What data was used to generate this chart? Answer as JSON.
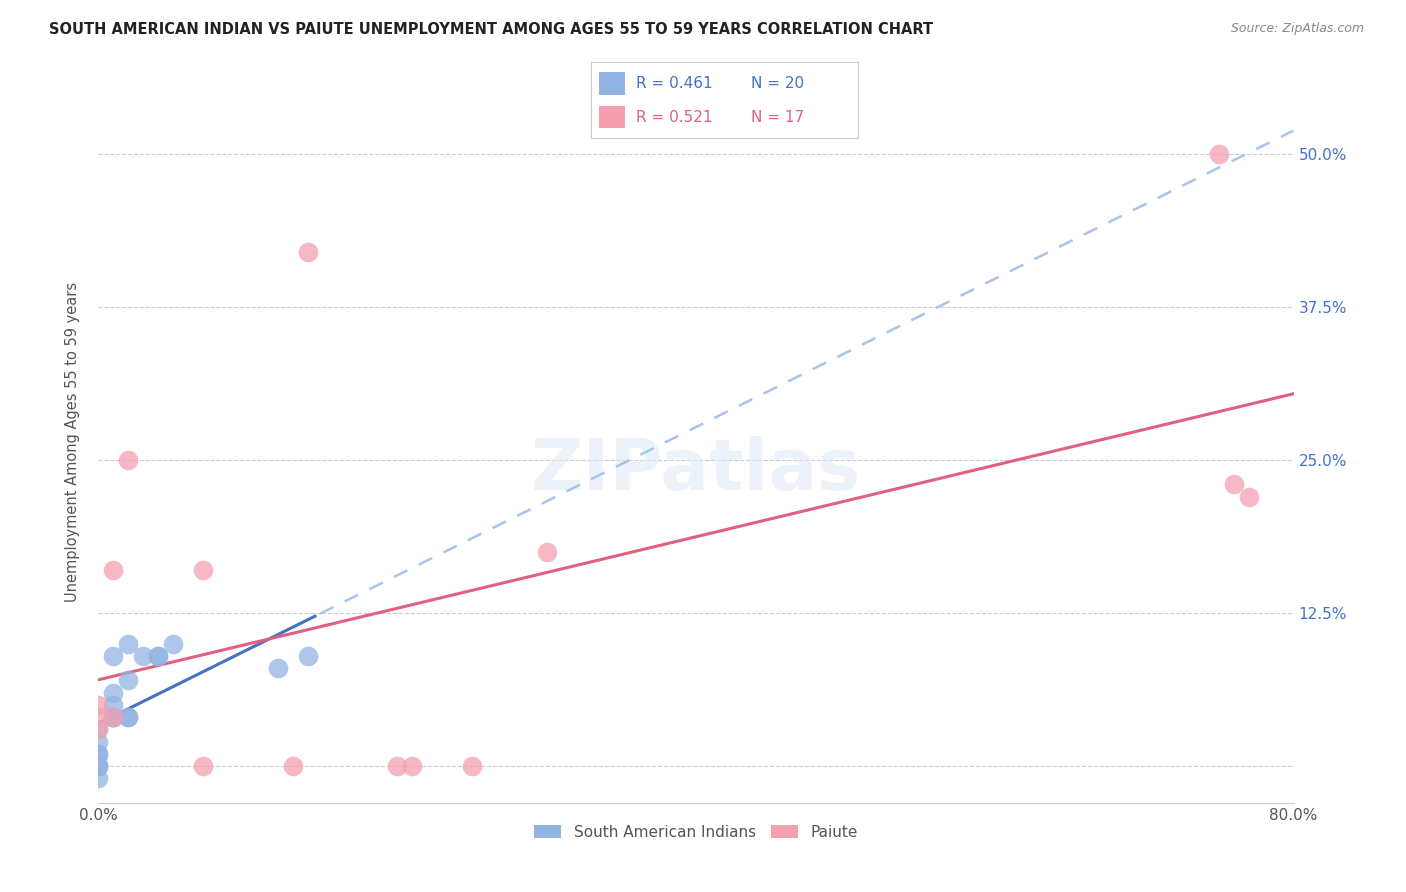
{
  "title": "SOUTH AMERICAN INDIAN VS PAIUTE UNEMPLOYMENT AMONG AGES 55 TO 59 YEARS CORRELATION CHART",
  "source": "Source: ZipAtlas.com",
  "ylabel": "Unemployment Among Ages 55 to 59 years",
  "xlim": [
    0.0,
    0.8
  ],
  "ylim": [
    -0.03,
    0.56
  ],
  "ytick_right_labels": [
    "",
    "12.5%",
    "25.0%",
    "37.5%",
    "50.0%"
  ],
  "ytick_right_values": [
    0.0,
    0.125,
    0.25,
    0.375,
    0.5
  ],
  "legend_label1": "South American Indians",
  "legend_label2": "Paiute",
  "blue_color": "#92b4e3",
  "pink_color": "#f4a0b0",
  "blue_line_color": "#4472c4",
  "pink_line_color": "#e06080",
  "blue_dash_color": "#a8c4ea",
  "watermark": "ZIPatlas",
  "blue_scatter_x": [
    0.0,
    0.0,
    0.0,
    0.0,
    0.0,
    0.0,
    0.0,
    0.01,
    0.01,
    0.01,
    0.01,
    0.01,
    0.01,
    0.02,
    0.02,
    0.02,
    0.02,
    0.03,
    0.04,
    0.04,
    0.05,
    0.12,
    0.14,
    0.0
  ],
  "blue_scatter_y": [
    0.0,
    0.0,
    0.0,
    0.01,
    0.01,
    0.02,
    0.03,
    0.04,
    0.04,
    0.04,
    0.05,
    0.06,
    0.09,
    0.04,
    0.04,
    0.07,
    0.1,
    0.09,
    0.09,
    0.09,
    0.1,
    0.08,
    0.09,
    -0.01
  ],
  "pink_scatter_x": [
    0.0,
    0.0,
    0.0,
    0.01,
    0.01,
    0.02,
    0.07,
    0.07,
    0.13,
    0.14,
    0.2,
    0.21,
    0.25,
    0.3,
    0.75,
    0.76,
    0.77
  ],
  "pink_scatter_y": [
    0.03,
    0.04,
    0.05,
    0.04,
    0.16,
    0.25,
    0.0,
    0.16,
    0.0,
    0.42,
    0.0,
    0.0,
    0.0,
    0.175,
    0.5,
    0.23,
    0.22
  ],
  "blue_solid_xlim": [
    0.0,
    0.145
  ],
  "blue_dash_xlim": [
    0.0,
    0.8
  ],
  "pink_solid_xlim": [
    0.0,
    0.8
  ]
}
